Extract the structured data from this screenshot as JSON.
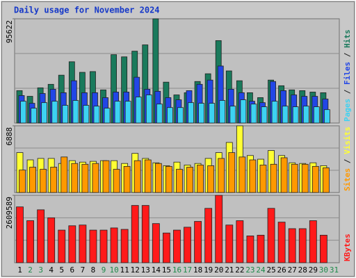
{
  "chart_data": [
    {
      "type": "bar",
      "title": "Daily usage for November 2024",
      "ylim": [
        0,
        95622
      ],
      "yticks": [
        95622
      ],
      "legend_separator": " / ",
      "series": [
        {
          "name": "Hits",
          "color": "#1a7a5c",
          "values": [
            29700,
            24500,
            32300,
            35500,
            43900,
            56200,
            46500,
            47200,
            30400,
            62700,
            60700,
            65900,
            71700,
            95622,
            37500,
            25800,
            27800,
            38100,
            45200,
            75600,
            47800,
            38800,
            27800,
            23300,
            39400,
            34200,
            30400,
            29700,
            28400,
            27800,
            null
          ]
        },
        {
          "name": "Files",
          "color": "#2246e6",
          "values": [
            25200,
            18100,
            27100,
            31000,
            27800,
            38800,
            27800,
            27800,
            23300,
            28400,
            28400,
            42000,
            31000,
            29100,
            23300,
            21300,
            29700,
            35500,
            39400,
            52300,
            31000,
            27800,
            20000,
            18700,
            38100,
            29700,
            25800,
            24500,
            24500,
            22000,
            null
          ]
        },
        {
          "name": "Pages",
          "color": "#3dd2f2",
          "values": [
            20000,
            13600,
            18700,
            20000,
            16200,
            20700,
            16200,
            15500,
            13600,
            20000,
            20000,
            23900,
            25800,
            17400,
            14200,
            14200,
            18700,
            18100,
            18100,
            20700,
            15500,
            21300,
            17400,
            14900,
            20000,
            15500,
            14900,
            15500,
            14900,
            12300,
            null
          ]
        }
      ]
    },
    {
      "type": "bar",
      "ylim": [
        0,
        6888
      ],
      "yticks": [
        6888
      ],
      "legend_separator": " / ",
      "series": [
        {
          "name": "Visits",
          "color": "#ffff33",
          "values": [
            4120,
            3370,
            3520,
            3520,
            3000,
            3290,
            3140,
            3220,
            3290,
            3290,
            3000,
            4040,
            3520,
            3070,
            2770,
            3140,
            2840,
            3000,
            3520,
            4120,
            5170,
            6888,
            3820,
            3440,
            4340,
            3820,
            3070,
            3000,
            3070,
            2770,
            null
          ]
        },
        {
          "name": "Sites",
          "color": "#ff9900",
          "values": [
            2320,
            2620,
            2400,
            2620,
            3670,
            3000,
            2920,
            3000,
            3290,
            2400,
            2700,
            3290,
            3370,
            3000,
            2700,
            2400,
            2620,
            2840,
            2770,
            3520,
            4120,
            3670,
            3370,
            2840,
            2920,
            3590,
            2920,
            2920,
            2700,
            2550,
            null
          ]
        }
      ]
    },
    {
      "type": "bar",
      "ylim": [
        0,
        2609589
      ],
      "yticks": [
        2609589
      ],
      "categories": [
        "1",
        "2",
        "3",
        "4",
        "5",
        "6",
        "7",
        "8",
        "9",
        "10",
        "11",
        "12",
        "13",
        "14",
        "15",
        "16",
        "17",
        "18",
        "19",
        "20",
        "21",
        "22",
        "23",
        "24",
        "25",
        "26",
        "27",
        "28",
        "29",
        "30",
        "31"
      ],
      "category_colors": [
        "#000000",
        "#1d8a4a",
        "#1d8a4a",
        "#000000",
        "#000000",
        "#000000",
        "#000000",
        "#000000",
        "#1d8a4a",
        "#1d8a4a",
        "#000000",
        "#000000",
        "#000000",
        "#000000",
        "#000000",
        "#1d8a4a",
        "#1d8a4a",
        "#000000",
        "#000000",
        "#000000",
        "#000000",
        "#000000",
        "#1d8a4a",
        "#1d8a4a",
        "#000000",
        "#000000",
        "#000000",
        "#000000",
        "#000000",
        "#1d8a4a",
        "#1d8a4a"
      ],
      "series": [
        {
          "name": "KBytes",
          "color": "#ff1a1a",
          "values": [
            2160600,
            1627500,
            2048400,
            1739700,
            1262700,
            1431100,
            1459100,
            1262700,
            1262700,
            1346900,
            1290800,
            2216700,
            2216700,
            1515200,
            1150500,
            1262700,
            1374900,
            1599400,
            2104500,
            2609589,
            1459100,
            1627500,
            1038200,
            1066300,
            2104500,
            1571400,
            1318800,
            1318800,
            1627500,
            1066300,
            null
          ]
        }
      ]
    }
  ]
}
